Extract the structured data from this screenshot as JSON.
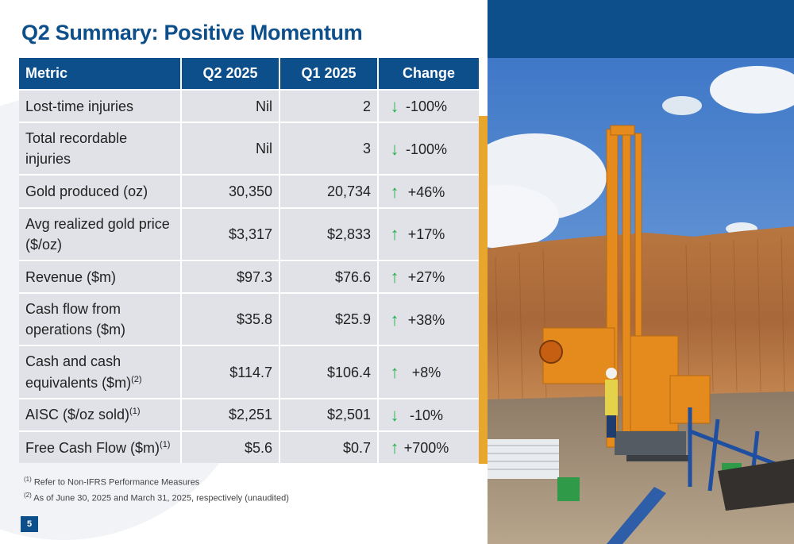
{
  "slide": {
    "title": "Q2 Summary: Positive Momentum",
    "page_number": "5"
  },
  "table": {
    "headers": [
      "Metric",
      "Q2 2025",
      "Q1 2025",
      "Change"
    ],
    "rows": [
      {
        "metric": "Lost-time injuries",
        "sup": "",
        "q2": "Nil",
        "q1": "2",
        "direction": "down",
        "change": "-100%"
      },
      {
        "metric": "Total recordable injuries",
        "sup": "",
        "q2": "Nil",
        "q1": "3",
        "direction": "down",
        "change": "-100%"
      },
      {
        "metric": "Gold produced (oz)",
        "sup": "",
        "q2": "30,350",
        "q1": "20,734",
        "direction": "up",
        "change": "+46%"
      },
      {
        "metric": "Avg realized gold price ($/oz)",
        "sup": "",
        "q2": "$3,317",
        "q1": "$2,833",
        "direction": "up",
        "change": "+17%"
      },
      {
        "metric": "Revenue ($m)",
        "sup": "",
        "q2": "$97.3",
        "q1": "$76.6",
        "direction": "up",
        "change": "+27%"
      },
      {
        "metric": "Cash flow from operations ($m)",
        "sup": "",
        "q2": "$35.8",
        "q1": "$25.9",
        "direction": "up",
        "change": "+38%"
      },
      {
        "metric": "Cash and cash equivalents ($m)",
        "sup": "(2)",
        "q2": "$114.7",
        "q1": "$106.4",
        "direction": "up",
        "change": "+8%"
      },
      {
        "metric": "AISC ($/oz sold)",
        "sup": "(1)",
        "q2": "$2,251",
        "q1": "$2,501",
        "direction": "down",
        "change": "-10%"
      },
      {
        "metric": "Free Cash Flow ($m)",
        "sup": "(1)",
        "q2": "$5.6",
        "q1": "$0.7",
        "direction": "up",
        "change": "+700%"
      }
    ]
  },
  "footnotes": [
    {
      "marker": "(1)",
      "text": "Refer to Non-IFRS Performance Measures"
    },
    {
      "marker": "(2)",
      "text": "As of June 30, 2025 and March 31, 2025, respectively (unaudited)"
    }
  ],
  "colors": {
    "brand_blue": "#0d4f8b",
    "accent_gold": "#e8a72c",
    "arrow_green": "#22b14c",
    "row_gray": "#e1e2e8"
  },
  "icons": {
    "up": "arrow-up-icon",
    "down": "arrow-down-icon"
  }
}
